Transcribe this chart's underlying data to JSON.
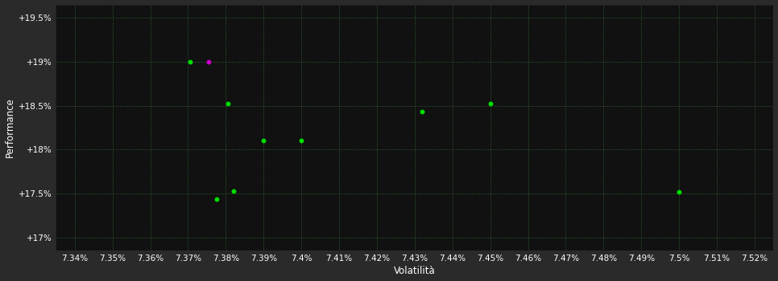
{
  "background_color": "#2a2a2a",
  "plot_bg_color": "#111111",
  "grid_color": "#3a7a3a",
  "text_color": "#ffffff",
  "xlabel": "Volatilità",
  "ylabel": "Performance",
  "xlim": [
    7.335,
    7.525
  ],
  "ylim": [
    16.85,
    19.65
  ],
  "yticks": [
    17.0,
    17.5,
    18.0,
    18.5,
    19.0,
    19.5
  ],
  "xticks": [
    7.34,
    7.35,
    7.36,
    7.37,
    7.38,
    7.39,
    7.4,
    7.41,
    7.42,
    7.43,
    7.44,
    7.45,
    7.46,
    7.47,
    7.48,
    7.49,
    7.5,
    7.51,
    7.52
  ],
  "xtick_labels": [
    "7.34%",
    "7.35%",
    "7.36%",
    "7.37%",
    "7.38%",
    "7.39%",
    "7.4%",
    "7.41%",
    "7.42%",
    "7.43%",
    "7.44%",
    "7.45%",
    "7.46%",
    "7.47%",
    "7.48%",
    "7.49%",
    "7.5%",
    "7.51%",
    "7.52%"
  ],
  "green_points": [
    [
      7.3705,
      19.0
    ],
    [
      7.3805,
      18.52
    ],
    [
      7.39,
      18.1
    ],
    [
      7.4,
      18.1
    ],
    [
      7.3775,
      17.44
    ],
    [
      7.382,
      17.53
    ],
    [
      7.432,
      18.43
    ],
    [
      7.45,
      18.52
    ],
    [
      7.5,
      17.52
    ]
  ],
  "purple_points": [
    [
      7.3755,
      19.0
    ]
  ],
  "green_color": "#00dd00",
  "purple_color": "#cc00cc",
  "point_size": 18,
  "font_size_ticks": 7.5,
  "font_size_label": 8.5
}
